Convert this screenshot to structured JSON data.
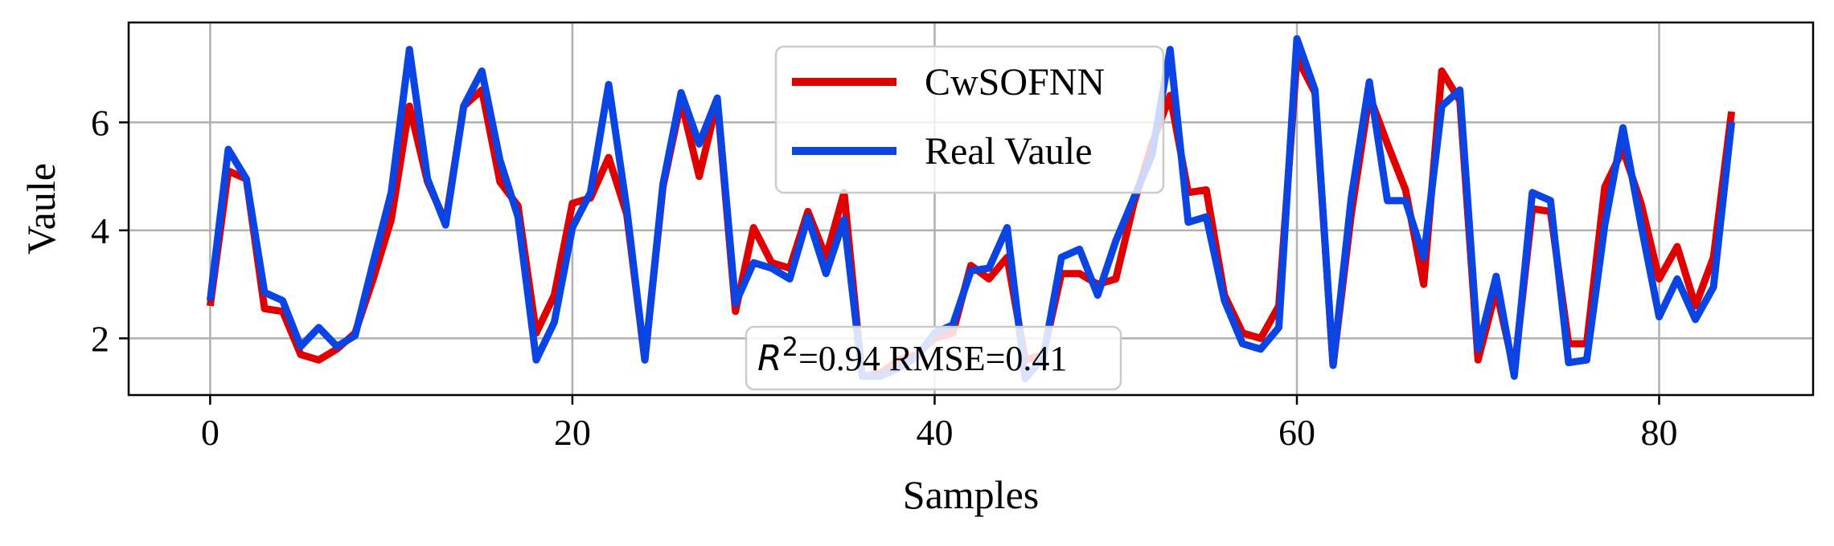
{
  "chart_data": {
    "type": "line",
    "xlabel": "Samples",
    "ylabel": "Vaule",
    "xlim": [
      -4.5,
      88.5
    ],
    "ylim": [
      0.95,
      7.85
    ],
    "x_ticks": [
      0,
      20,
      40,
      60,
      80
    ],
    "y_ticks": [
      2,
      4,
      6
    ],
    "grid": true,
    "legend_position": "top-center",
    "annotation": {
      "math_symbol": "R",
      "superscript": "2",
      "text": "=0.94 RMSE=0.41"
    },
    "series": [
      {
        "name": "CwSOFNN",
        "color": "#e00000",
        "values": [
          2.6,
          5.1,
          4.95,
          2.55,
          2.5,
          1.7,
          1.6,
          1.8,
          2.1,
          3.1,
          4.2,
          6.3,
          4.9,
          4.15,
          6.3,
          6.6,
          4.9,
          4.45,
          2.1,
          2.8,
          4.5,
          4.6,
          5.35,
          4.3,
          1.6,
          4.8,
          6.4,
          5.0,
          6.4,
          2.5,
          4.05,
          3.4,
          3.3,
          4.35,
          3.5,
          4.7,
          1.3,
          1.35,
          1.6,
          1.7,
          2.0,
          2.1,
          3.35,
          3.1,
          3.5,
          1.6,
          1.7,
          3.2,
          3.2,
          3.0,
          3.1,
          4.5,
          5.6,
          6.5,
          4.7,
          4.75,
          2.8,
          2.1,
          2.0,
          2.6,
          7.2,
          6.55,
          1.5,
          4.3,
          6.5,
          5.6,
          4.75,
          3.0,
          6.95,
          6.4,
          1.6,
          2.9,
          1.4,
          4.4,
          4.35,
          1.9,
          1.9,
          4.8,
          5.5,
          4.5,
          3.1,
          3.7,
          2.6,
          3.5,
          6.2
        ]
      },
      {
        "name": "Real Vaule",
        "color": "#0a44e3",
        "values": [
          2.7,
          5.5,
          4.95,
          2.85,
          2.7,
          1.85,
          2.2,
          1.85,
          2.05,
          3.4,
          4.7,
          7.35,
          4.95,
          4.1,
          6.3,
          6.95,
          5.3,
          4.25,
          1.6,
          2.3,
          4.05,
          4.7,
          6.7,
          4.4,
          1.6,
          4.85,
          6.55,
          5.6,
          6.45,
          2.65,
          3.4,
          3.3,
          3.1,
          4.25,
          3.2,
          4.2,
          1.3,
          1.3,
          1.45,
          1.65,
          2.1,
          2.25,
          3.25,
          3.3,
          4.05,
          1.25,
          1.65,
          3.5,
          3.65,
          2.8,
          3.8,
          4.6,
          5.4,
          7.35,
          4.15,
          4.25,
          2.7,
          1.9,
          1.8,
          2.2,
          7.55,
          6.6,
          1.5,
          4.6,
          6.75,
          4.55,
          4.55,
          3.5,
          6.3,
          6.6,
          1.8,
          3.15,
          1.3,
          4.7,
          4.55,
          1.55,
          1.6,
          4.1,
          5.9,
          4.1,
          2.4,
          3.1,
          2.35,
          2.95,
          6.0
        ]
      }
    ]
  }
}
